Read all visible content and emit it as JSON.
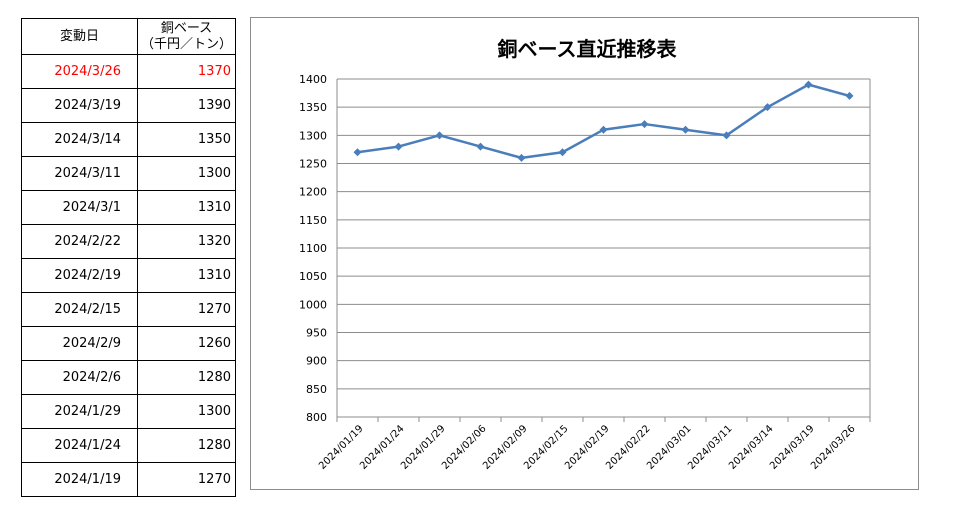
{
  "table": {
    "headers": {
      "date": "変動日",
      "price_line1": "銅ベース",
      "price_line2": "（千円／トン）"
    },
    "rows": [
      {
        "date": "2024/3/26",
        "value": "1370",
        "highlight": true
      },
      {
        "date": "2024/3/19",
        "value": "1390"
      },
      {
        "date": "2024/3/14",
        "value": "1350"
      },
      {
        "date": "2024/3/11",
        "value": "1300"
      },
      {
        "date": "2024/3/1",
        "value": "1310"
      },
      {
        "date": "2024/2/22",
        "value": "1320"
      },
      {
        "date": "2024/2/19",
        "value": "1310"
      },
      {
        "date": "2024/2/15",
        "value": "1270"
      },
      {
        "date": "2024/2/9",
        "value": "1260"
      },
      {
        "date": "2024/2/6",
        "value": "1280"
      },
      {
        "date": "2024/1/29",
        "value": "1300"
      },
      {
        "date": "2024/1/24",
        "value": "1280"
      },
      {
        "date": "2024/1/19",
        "value": "1270"
      }
    ],
    "highlight_color": "#ff0000"
  },
  "chart_data": {
    "type": "line",
    "title": "銅ベース直近推移表",
    "categories": [
      "2024/01/19",
      "2024/01/24",
      "2024/01/29",
      "2024/02/06",
      "2024/02/09",
      "2024/02/15",
      "2024/02/19",
      "2024/02/22",
      "2024/03/01",
      "2024/03/11",
      "2024/03/14",
      "2024/03/19",
      "2024/03/26"
    ],
    "series": [
      {
        "values": [
          1270,
          1280,
          1300,
          1280,
          1260,
          1270,
          1310,
          1320,
          1310,
          1300,
          1350,
          1390,
          1370
        ],
        "color": "#4a7ebb",
        "marker": "diamond"
      }
    ],
    "ylim": [
      800,
      1400
    ],
    "yticks": [
      800,
      850,
      900,
      950,
      1000,
      1050,
      1100,
      1150,
      1200,
      1250,
      1300,
      1350,
      1400
    ],
    "grid": true,
    "legend": "none"
  }
}
